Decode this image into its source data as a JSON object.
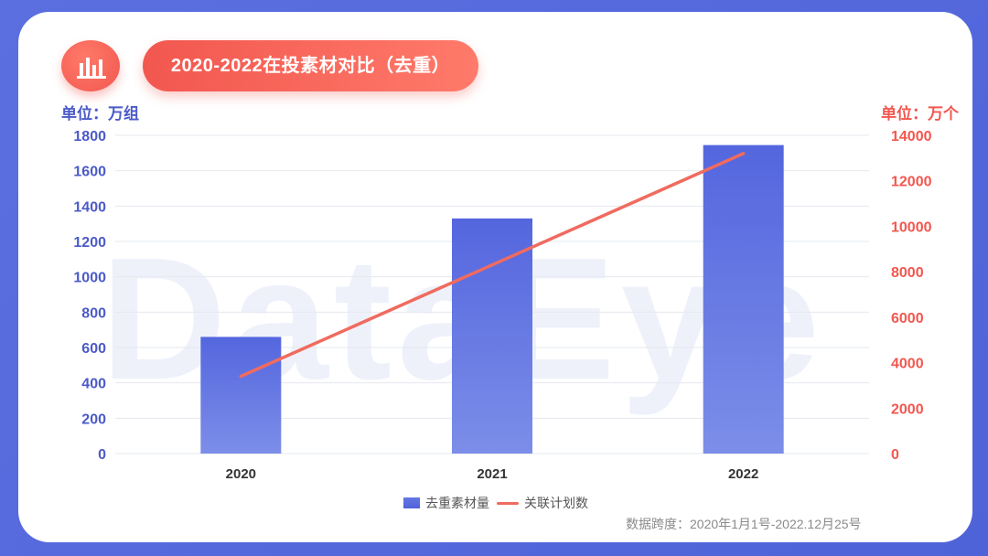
{
  "header": {
    "title": "2020-2022在投素材对比（去重）",
    "unit_left": "单位：万组",
    "unit_right": "单位：万个"
  },
  "watermark": "DataEye",
  "legend": {
    "bar_label": "去重素材量",
    "line_label": "关联计划数"
  },
  "footnote": "数据跨度：2020年1月1号-2022.12月25号",
  "colors": {
    "bar": "#5b6fe0",
    "line": "#f06b5f",
    "left_axis": "#4b5ac8",
    "right_axis": "#f2574f"
  },
  "chart_data": {
    "type": "bar",
    "categories": [
      "2020",
      "2021",
      "2022"
    ],
    "series": [
      {
        "name": "去重素材量",
        "type": "bar",
        "axis": "left",
        "values": [
          660,
          1330,
          1745
        ]
      },
      {
        "name": "关联计划数",
        "type": "line",
        "axis": "right",
        "values": [
          3400,
          8300,
          13200
        ]
      }
    ],
    "y_left": {
      "ylim": [
        0,
        1800
      ],
      "ticks": [
        "0",
        "200",
        "400",
        "600",
        "800",
        "1000",
        "1200",
        "1400",
        "1600",
        "1800"
      ]
    },
    "y_right": {
      "ylim": [
        0,
        14000
      ],
      "ticks": [
        "0",
        "2000",
        "4000",
        "6000",
        "8000",
        "10000",
        "12000",
        "14000"
      ]
    },
    "grid": true,
    "legend_position": "bottom"
  }
}
